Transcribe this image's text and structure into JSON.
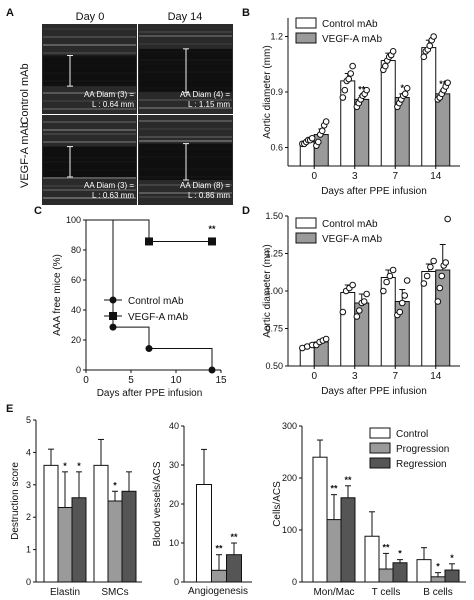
{
  "panel_letters": {
    "a": "A",
    "b": "B",
    "c": "C",
    "d": "D",
    "e": "E"
  },
  "panel_a": {
    "col_labels": [
      "Day 0",
      "Day 14"
    ],
    "row_labels": [
      "Control mAb",
      "VEGF-A mAb"
    ],
    "images": [
      {
        "line1": "AA Diam (3) =",
        "line2": "L : 0.64 mm"
      },
      {
        "line1": "AA Diam (4) =",
        "line2": "L : 1.15 mm"
      },
      {
        "line1": "AA Diam (3) =",
        "line2": "L : 0.63 mm"
      },
      {
        "line1": "AA Diam (8) =",
        "line2": "L : 0.86 mm"
      }
    ]
  },
  "colors": {
    "control": "#ffffff",
    "treatment": "#9a9a9a",
    "regression": "#555555",
    "axis": "#111111"
  },
  "chart_data": [
    {
      "id": "B",
      "type": "bar",
      "xlabel": "Days after PPE infusion",
      "ylabel": "Aortic diameter (mm)",
      "categories": [
        "0",
        "3",
        "7",
        "14"
      ],
      "ylim": [
        0.5,
        1.3
      ],
      "yticks": [
        "0.6",
        "0.9",
        "1.2"
      ],
      "legend_position": "top-left",
      "series": [
        {
          "name": "Control mAb",
          "values": [
            0.63,
            0.96,
            1.07,
            1.14
          ],
          "errors": [
            0.01,
            0.04,
            0.04,
            0.04
          ]
        },
        {
          "name": "VEGF-A mAb",
          "values": [
            0.67,
            0.86,
            0.87,
            0.89
          ],
          "errors": [
            0.03,
            0.02,
            0.02,
            0.02
          ]
        }
      ],
      "points": [
        [
          [
            0.62,
            0.62,
            0.63,
            0.64,
            0.64,
            0.65
          ],
          [
            0.61,
            0.63,
            0.67,
            0.69,
            0.72,
            0.74
          ]
        ],
        [
          [
            0.87,
            0.91,
            0.96,
            0.97,
            1.0,
            1.04
          ],
          [
            0.82,
            0.84,
            0.86,
            0.88,
            0.89,
            0.91
          ]
        ],
        [
          [
            1.02,
            1.04,
            1.07,
            1.09,
            1.1,
            1.12
          ],
          [
            0.82,
            0.84,
            0.86,
            0.88,
            0.89,
            0.92
          ]
        ],
        [
          [
            1.09,
            1.12,
            1.13,
            1.15,
            1.18,
            1.2
          ],
          [
            0.86,
            0.87,
            0.89,
            0.91,
            0.93,
            0.95
          ]
        ]
      ],
      "significance": [
        {
          "index": 1,
          "text": "**"
        },
        {
          "index": 2,
          "text": "*"
        },
        {
          "index": 3,
          "text": "**"
        }
      ]
    },
    {
      "id": "C",
      "type": "line",
      "xlabel": "Days after PPE infusion",
      "ylabel": "AAA free mice (%)",
      "xlim": [
        0,
        15
      ],
      "ylim": [
        0,
        100
      ],
      "xticks": [
        "0",
        "5",
        "10",
        "15"
      ],
      "yticks": [
        "0",
        "20",
        "40",
        "60",
        "80",
        "100"
      ],
      "legend_position": "center",
      "series": [
        {
          "name": "Control mAb",
          "marker": "circle",
          "x": [
            0,
            3,
            7,
            14
          ],
          "y": [
            100,
            28.6,
            14.3,
            0
          ]
        },
        {
          "name": "VEGF-A mAb",
          "marker": "square",
          "x": [
            0,
            7,
            14
          ],
          "y": [
            100,
            85.7,
            85.7
          ]
        }
      ],
      "significance": [
        {
          "x": 14,
          "y": 92,
          "text": "**"
        }
      ]
    },
    {
      "id": "D",
      "type": "bar",
      "xlabel": "Days after PPE infusion",
      "ylabel": "Aortic diameter (mm)",
      "categories": [
        "0",
        "3",
        "7",
        "14"
      ],
      "ylim": [
        0.5,
        1.5
      ],
      "yticks": [
        "0.50",
        "0.75",
        "1.00",
        "1.25",
        "1.50"
      ],
      "legend_position": "top-left",
      "series": [
        {
          "name": "Control mAb",
          "values": [
            0.63,
            0.99,
            1.09,
            1.13
          ],
          "errors": [
            0.01,
            0.05,
            0.05,
            0.05
          ]
        },
        {
          "name": "VEGF-A mAb",
          "values": [
            0.66,
            0.92,
            0.93,
            1.14
          ],
          "errors": [
            0.01,
            0.06,
            0.08,
            0.17
          ]
        }
      ],
      "points": [
        [
          [
            0.62,
            0.63,
            0.64
          ],
          [
            0.64,
            0.66,
            0.67,
            0.68
          ]
        ],
        [
          [
            0.86,
            1.0,
            1.02,
            1.04
          ],
          [
            0.83,
            0.87,
            0.92,
            0.93,
            0.98
          ]
        ],
        [
          [
            1.0,
            1.06,
            1.1,
            1.14
          ],
          [
            0.84,
            0.86,
            0.92,
            0.97,
            1.07
          ]
        ],
        [
          [
            1.05,
            1.1,
            1.16,
            1.2
          ],
          [
            0.93,
            1.02,
            1.1,
            1.17,
            1.19,
            1.48
          ]
        ]
      ],
      "significance": []
    },
    {
      "id": "E1",
      "type": "bar",
      "xlabel": "",
      "ylabel": "Destruction score",
      "categories": [
        "Elastin",
        "SMCs"
      ],
      "ylim": [
        0,
        5
      ],
      "yticks": [
        "0",
        "1",
        "2",
        "3",
        "4",
        "5"
      ],
      "series": [
        {
          "name": "Control",
          "values": [
            3.6,
            3.6
          ],
          "errors": [
            0.5,
            0.8
          ]
        },
        {
          "name": "Progression",
          "values": [
            2.3,
            2.5
          ],
          "errors": [
            1.1,
            0.3
          ]
        },
        {
          "name": "Regression",
          "values": [
            2.6,
            2.8
          ],
          "errors": [
            0.8,
            0.6
          ]
        }
      ],
      "significance": [
        {
          "cat": 0,
          "ser": 1,
          "text": "*"
        },
        {
          "cat": 0,
          "ser": 2,
          "text": "*"
        },
        {
          "cat": 1,
          "ser": 1,
          "text": "*"
        }
      ]
    },
    {
      "id": "E2",
      "type": "bar",
      "xlabel": "Angiogenesis",
      "ylabel": "Blood vessels/ACS",
      "categories": [
        ""
      ],
      "ylim": [
        0,
        40
      ],
      "yticks": [
        "0",
        "10",
        "20",
        "30",
        "40"
      ],
      "series": [
        {
          "name": "Control",
          "values": [
            25
          ],
          "errors": [
            9
          ]
        },
        {
          "name": "Progression",
          "values": [
            3
          ],
          "errors": [
            4
          ]
        },
        {
          "name": "Regression",
          "values": [
            7
          ],
          "errors": [
            3
          ]
        }
      ],
      "significance": [
        {
          "cat": 0,
          "ser": 1,
          "text": "**"
        },
        {
          "cat": 0,
          "ser": 2,
          "text": "**"
        }
      ]
    },
    {
      "id": "E3",
      "type": "bar",
      "xlabel": "",
      "ylabel": "Cells/ACS",
      "categories": [
        "Mon/Mac",
        "T cells",
        "B cells"
      ],
      "ylim": [
        0,
        300
      ],
      "yticks": [
        "0",
        "100",
        "200",
        "300"
      ],
      "legend_position": "top-right",
      "series": [
        {
          "name": "Control",
          "values": [
            240,
            88,
            43
          ],
          "errors": [
            33,
            47,
            23
          ]
        },
        {
          "name": "Progression",
          "values": [
            120,
            25,
            10
          ],
          "errors": [
            48,
            30,
            8
          ]
        },
        {
          "name": "Regression",
          "values": [
            162,
            37,
            23
          ],
          "errors": [
            23,
            6,
            12
          ]
        }
      ],
      "significance": [
        {
          "cat": 0,
          "ser": 1,
          "text": "**"
        },
        {
          "cat": 0,
          "ser": 2,
          "text": "**"
        },
        {
          "cat": 1,
          "ser": 1,
          "text": "**"
        },
        {
          "cat": 1,
          "ser": 2,
          "text": "*"
        },
        {
          "cat": 2,
          "ser": 1,
          "text": "*"
        },
        {
          "cat": 2,
          "ser": 2,
          "text": "*"
        }
      ]
    }
  ]
}
